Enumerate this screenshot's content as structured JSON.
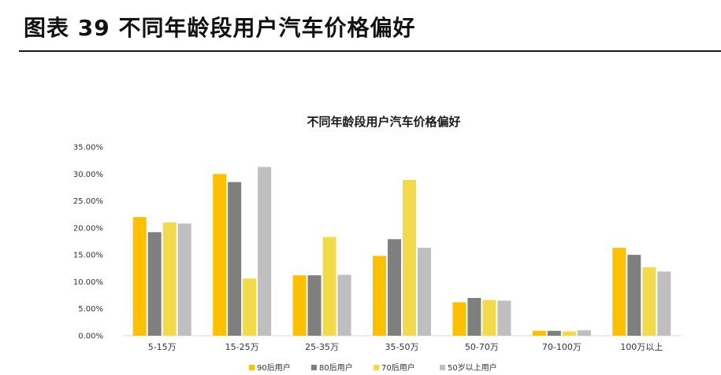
{
  "figure": {
    "header": "图表 39  不同年龄段用户汽车价格偏好"
  },
  "chart_data": {
    "type": "bar",
    "title": "不同年龄段用户汽车价格偏好",
    "categories": [
      "5-15万",
      "15-25万",
      "25-35万",
      "35-50万",
      "50-70万",
      "70-100万",
      "100万以上"
    ],
    "series": [
      {
        "name": "90后用户",
        "color": "#FFC000",
        "values": [
          22.0,
          30.0,
          11.2,
          14.8,
          6.2,
          0.9,
          16.3
        ]
      },
      {
        "name": "80后用户",
        "color": "#7F7F7F",
        "values": [
          19.2,
          28.5,
          11.2,
          17.9,
          7.0,
          0.9,
          15.0
        ]
      },
      {
        "name": "70后用户",
        "color": "#F3DA4B",
        "values": [
          21.0,
          10.6,
          18.3,
          28.9,
          6.6,
          0.8,
          12.7
        ]
      },
      {
        "name": "50岁以上用户",
        "color": "#BFBFBF",
        "values": [
          20.8,
          31.3,
          11.3,
          16.3,
          6.5,
          1.0,
          11.9
        ]
      }
    ],
    "yticks": [
      "0.00%",
      "5.00%",
      "10.00%",
      "15.00%",
      "20.00%",
      "25.00%",
      "30.00%",
      "35.00%"
    ],
    "ylim": [
      0,
      35
    ],
    "legend_position": "bottom",
    "grid": false
  }
}
